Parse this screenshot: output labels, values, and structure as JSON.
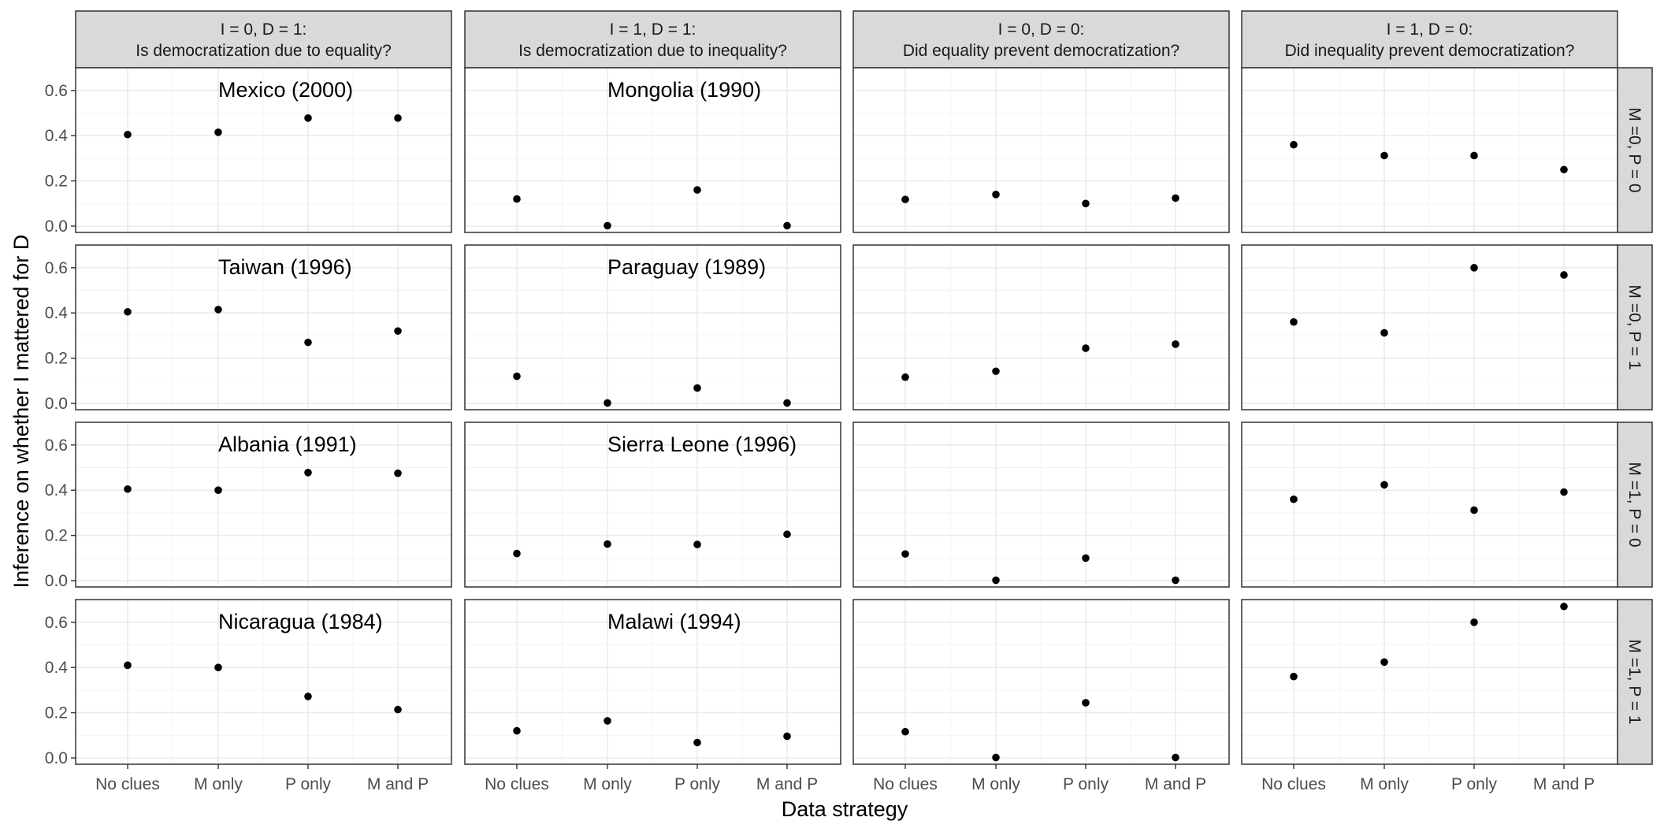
{
  "chart_data": {
    "type": "scatter",
    "xlabel": "Data strategy",
    "ylabel": "Inference on whether I mattered for D",
    "categories": [
      "No clues",
      "M only",
      "P only",
      "M and P"
    ],
    "ylim": [
      0,
      0.65
    ],
    "y_ticks": [
      "0.0",
      "0.2",
      "0.4",
      "0.6"
    ],
    "grid": true,
    "legend": "none",
    "point_color": "#000000",
    "strip_color": "#d9d9d9",
    "columns": [
      {
        "line1": "I = 0, D = 1:",
        "line2": "Is democratization due to equality?"
      },
      {
        "line1": "I = 1, D = 1:",
        "line2": "Is democratization due to inequality?"
      },
      {
        "line1": "I = 0, D = 0:",
        "line2": "Did equality prevent democratization?"
      },
      {
        "line1": "I = 1, D = 0:",
        "line2": "Did inequality prevent democratization?"
      }
    ],
    "rows": [
      "M =0, P = 0",
      "M =0, P = 1",
      "M =1, P = 0",
      "M =1, P = 1"
    ],
    "panels": [
      [
        {
          "label": "Mexico (2000)",
          "values": [
            0.405,
            0.415,
            0.478,
            0.478
          ]
        },
        {
          "label": "Mongolia (1990)",
          "values": [
            0.12,
            0.002,
            0.16,
            0.002
          ]
        },
        {
          "label": "",
          "values": [
            0.118,
            0.14,
            0.1,
            0.124
          ]
        },
        {
          "label": "",
          "values": [
            0.36,
            0.312,
            0.312,
            0.25
          ]
        }
      ],
      [
        {
          "label": "Taiwan (1996)",
          "values": [
            0.405,
            0.415,
            0.27,
            0.32
          ]
        },
        {
          "label": "Paraguay (1989)",
          "values": [
            0.12,
            0.002,
            0.068,
            0.002
          ]
        },
        {
          "label": "",
          "values": [
            0.116,
            0.142,
            0.244,
            0.262
          ]
        },
        {
          "label": "",
          "values": [
            0.36,
            0.312,
            0.6,
            0.568
          ]
        }
      ],
      [
        {
          "label": "Albania (1991)",
          "values": [
            0.405,
            0.4,
            0.478,
            0.475
          ]
        },
        {
          "label": "Sierra Leone (1996)",
          "values": [
            0.12,
            0.162,
            0.16,
            0.205
          ]
        },
        {
          "label": "",
          "values": [
            0.118,
            0.002,
            0.1,
            0.002
          ]
        },
        {
          "label": "",
          "values": [
            0.36,
            0.424,
            0.312,
            0.392
          ]
        }
      ],
      [
        {
          "label": "Nicaragua (1984)",
          "values": [
            0.41,
            0.4,
            0.272,
            0.214
          ]
        },
        {
          "label": "Malawi (1994)",
          "values": [
            0.12,
            0.164,
            0.068,
            0.096
          ]
        },
        {
          "label": "",
          "values": [
            0.116,
            0.002,
            0.244,
            0.002
          ]
        },
        {
          "label": "",
          "values": [
            0.36,
            0.424,
            0.6,
            0.67
          ]
        }
      ]
    ]
  }
}
